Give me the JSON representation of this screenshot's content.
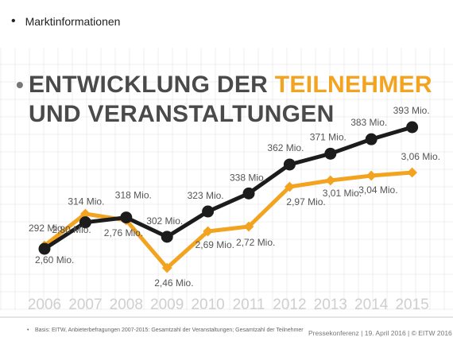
{
  "header": {
    "bullet_text": "Marktinformationen"
  },
  "title": {
    "line1_part1": "ENTWICKLUNG DER ",
    "line1_accent": "TEILNEHMER",
    "line2": "UND VERANSTALTUNGEN"
  },
  "chart_data": {
    "type": "line",
    "categories": [
      "2006",
      "2007",
      "2008",
      "2009",
      "2010",
      "2011",
      "2012",
      "2013",
      "2014",
      "2015"
    ],
    "series": [
      {
        "name": "Teilnehmer",
        "color": "#f2a31f",
        "values": [
          2.6,
          2.8,
          2.76,
          2.46,
          2.69,
          2.72,
          2.97,
          3.01,
          3.04,
          3.06
        ],
        "labels": [
          "2,60 Mio.",
          "2,80 Mio.",
          "2,76 Mio.",
          "2,46 Mio.",
          "2,69 Mio.",
          "2,72 Mio.",
          "2,97 Mio.",
          "3,01 Mio.",
          "3,04 Mio.",
          "3,06 Mio."
        ]
      },
      {
        "name": "Veranstaltungen",
        "color": "#1c1c1c",
        "values": [
          292,
          314,
          318,
          302,
          323,
          338,
          362,
          371,
          383,
          393
        ],
        "labels": [
          "292 Mio.",
          "314 Mio.",
          "318 Mio.",
          "302 Mio.",
          "323 Mio.",
          "338 Mio.",
          "362 Mio.",
          "371 Mio.",
          "383 Mio.",
          "393 Mio."
        ]
      }
    ],
    "xlabel": "",
    "ylabel": "",
    "grid": false,
    "legend": "none"
  },
  "footer": {
    "note": "Basis: EITW, Anbieterbefragungen 2007-2015: Gesamtzahl der Veranstaltungen; Gesamtzahl der Teilnehmer",
    "right": "Pressekonferenz | 19. April 2016 | © EITW 2016"
  }
}
